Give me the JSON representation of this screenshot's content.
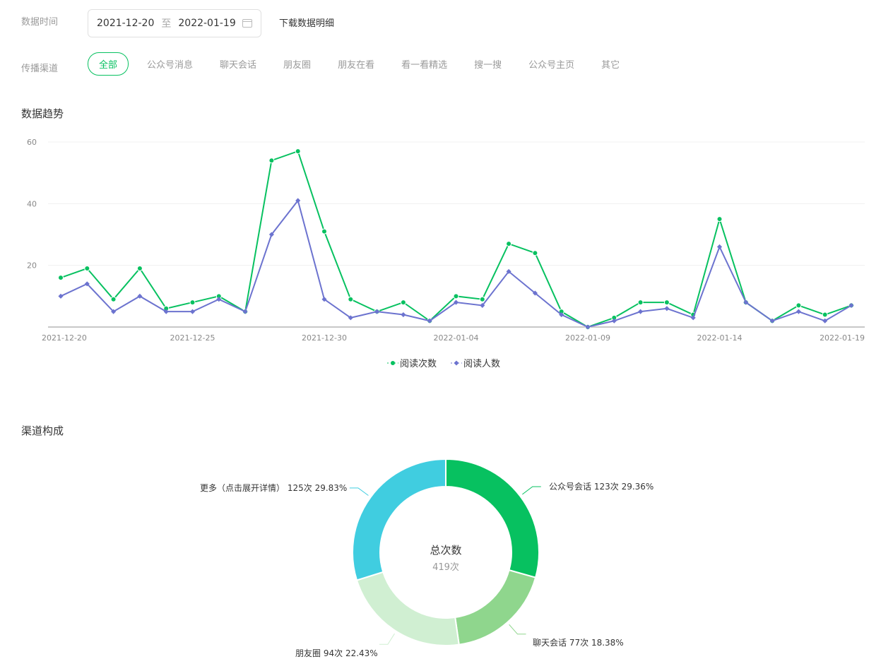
{
  "filters": {
    "date_label": "数据时间",
    "date_start": "2021-12-20",
    "date_sep": "至",
    "date_end": "2022-01-19",
    "calendar_icon": "calendar-icon",
    "download_label": "下载数据明细",
    "channel_label": "传播渠道",
    "channels": [
      "全部",
      "公众号消息",
      "聊天会话",
      "朋友圈",
      "朋友在看",
      "看一看精选",
      "搜一搜",
      "公众号主页",
      "其它"
    ],
    "active_channel": "全部"
  },
  "trend": {
    "title": "数据趋势"
  },
  "composition": {
    "title": "渠道构成"
  },
  "chart_data": [
    {
      "type": "line",
      "x": [
        "2021-12-20",
        "2021-12-21",
        "2021-12-22",
        "2021-12-23",
        "2021-12-24",
        "2021-12-25",
        "2021-12-26",
        "2021-12-27",
        "2021-12-28",
        "2021-12-29",
        "2021-12-30",
        "2021-12-31",
        "2022-01-01",
        "2022-01-02",
        "2022-01-03",
        "2022-01-04",
        "2022-01-05",
        "2022-01-06",
        "2022-01-07",
        "2022-01-08",
        "2022-01-09",
        "2022-01-10",
        "2022-01-11",
        "2022-01-12",
        "2022-01-13",
        "2022-01-14",
        "2022-01-15",
        "2022-01-16",
        "2022-01-17",
        "2022-01-18",
        "2022-01-19"
      ],
      "x_tick_labels": [
        "2021-12-20",
        "2021-12-25",
        "2021-12-30",
        "2022-01-04",
        "2022-01-09",
        "2022-01-14",
        "2022-01-19"
      ],
      "y_tick_labels": [
        "20",
        "40",
        "60"
      ],
      "ylim": [
        0,
        60
      ],
      "grid": true,
      "legend": "bottom",
      "series": [
        {
          "name": "阅读次数",
          "color": "#07c160",
          "marker": "circle",
          "values": [
            16,
            19,
            9,
            19,
            6,
            8,
            10,
            5,
            54,
            57,
            31,
            9,
            5,
            8,
            2,
            10,
            9,
            27,
            24,
            5,
            0,
            3,
            8,
            8,
            4,
            35,
            8,
            2,
            7,
            4,
            7
          ]
        },
        {
          "name": "阅读人数",
          "color": "#6c73cf",
          "marker": "diamond",
          "values": [
            10,
            14,
            5,
            10,
            5,
            5,
            9,
            5,
            30,
            41,
            9,
            3,
            5,
            4,
            2,
            8,
            7,
            18,
            11,
            4,
            0,
            2,
            5,
            6,
            3,
            26,
            8,
            2,
            5,
            2,
            7
          ]
        }
      ]
    },
    {
      "type": "pie",
      "donut": true,
      "center_title": "总次数",
      "center_value": "419次",
      "slices": [
        {
          "name": "公众号会话",
          "value": 123,
          "value_label": "123次",
          "percent": "29.36%",
          "color": "#07c160"
        },
        {
          "name": "聊天会话",
          "value": 77,
          "value_label": "77次",
          "percent": "18.38%",
          "color": "#8fd68d"
        },
        {
          "name": "朋友圈",
          "value": 94,
          "value_label": "94次",
          "percent": "22.43%",
          "color": "#d0efd2"
        },
        {
          "name": "更多（点击展开详情）",
          "value": 125,
          "value_label": "125次",
          "percent": "29.83%",
          "color": "#40cde0"
        }
      ]
    }
  ]
}
